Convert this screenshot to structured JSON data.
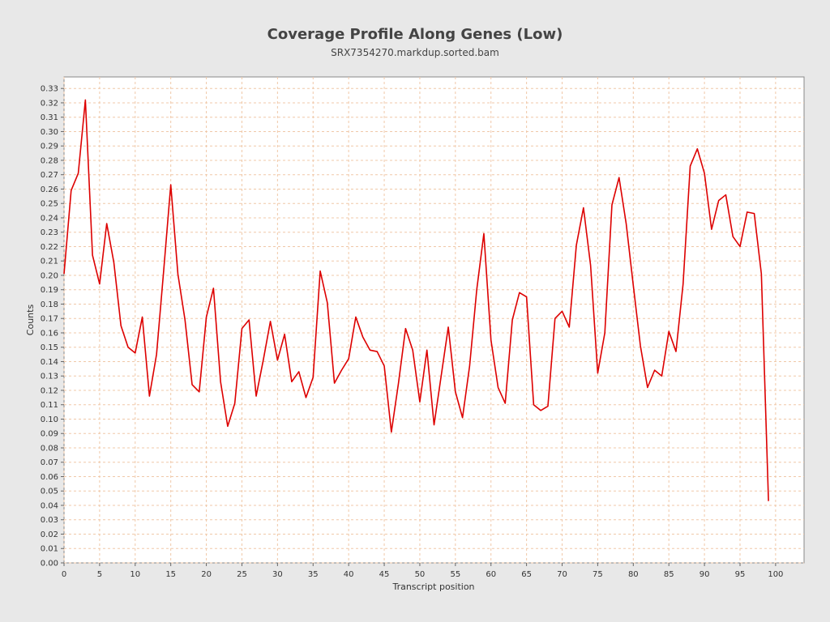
{
  "chart_data": {
    "type": "line",
    "title": "Coverage Profile Along Genes (Low)",
    "subtitle": "SRX7354270.markdup.sorted.bam",
    "xlabel": "Transcript position",
    "ylabel": "Counts",
    "xlim": [
      0,
      104
    ],
    "ylim": [
      0,
      0.338
    ],
    "xticks": [
      0,
      5,
      10,
      15,
      20,
      25,
      30,
      35,
      40,
      45,
      50,
      55,
      60,
      65,
      70,
      75,
      80,
      85,
      90,
      95,
      100
    ],
    "yticks": [
      "0.00",
      "0.01",
      "0.02",
      "0.03",
      "0.04",
      "0.05",
      "0.06",
      "0.07",
      "0.08",
      "0.09",
      "0.10",
      "0.11",
      "0.12",
      "0.13",
      "0.14",
      "0.15",
      "0.16",
      "0.17",
      "0.18",
      "0.19",
      "0.20",
      "0.21",
      "0.22",
      "0.23",
      "0.24",
      "0.25",
      "0.26",
      "0.27",
      "0.28",
      "0.29",
      "0.30",
      "0.31",
      "0.32",
      "0.33"
    ],
    "grid": true,
    "legend": "none",
    "series": [
      {
        "color": "#dd0000",
        "x": [
          0,
          1,
          2,
          3,
          4,
          5,
          6,
          7,
          8,
          9,
          10,
          11,
          12,
          13,
          14,
          15,
          16,
          17,
          18,
          19,
          20,
          21,
          22,
          23,
          24,
          25,
          26,
          27,
          28,
          29,
          30,
          31,
          32,
          33,
          34,
          35,
          36,
          37,
          38,
          39,
          40,
          41,
          42,
          43,
          44,
          45,
          46,
          47,
          48,
          49,
          50,
          51,
          52,
          53,
          54,
          55,
          56,
          57,
          58,
          59,
          60,
          61,
          62,
          63,
          64,
          65,
          66,
          67,
          68,
          69,
          70,
          71,
          72,
          73,
          74,
          75,
          76,
          77,
          78,
          79,
          80,
          81,
          82,
          83,
          84,
          85,
          86,
          87,
          88,
          89,
          90,
          91,
          92,
          93,
          94,
          95,
          96,
          97,
          98,
          99
        ],
        "y": [
          0.201,
          0.259,
          0.271,
          0.322,
          0.214,
          0.194,
          0.236,
          0.209,
          0.165,
          0.15,
          0.146,
          0.171,
          0.116,
          0.145,
          0.203,
          0.263,
          0.201,
          0.169,
          0.124,
          0.119,
          0.171,
          0.191,
          0.126,
          0.095,
          0.111,
          0.163,
          0.169,
          0.116,
          0.141,
          0.168,
          0.141,
          0.159,
          0.126,
          0.133,
          0.115,
          0.129,
          0.203,
          0.181,
          0.125,
          0.134,
          0.142,
          0.171,
          0.157,
          0.148,
          0.147,
          0.137,
          0.091,
          0.125,
          0.163,
          0.148,
          0.112,
          0.148,
          0.096,
          0.13,
          0.164,
          0.119,
          0.101,
          0.137,
          0.19,
          0.229,
          0.155,
          0.122,
          0.111,
          0.169,
          0.188,
          0.185,
          0.11,
          0.106,
          0.109,
          0.17,
          0.175,
          0.164,
          0.221,
          0.247,
          0.207,
          0.132,
          0.16,
          0.249,
          0.268,
          0.236,
          0.193,
          0.151,
          0.122,
          0.134,
          0.13,
          0.161,
          0.147,
          0.194,
          0.276,
          0.288,
          0.271,
          0.232,
          0.252,
          0.256,
          0.227,
          0.22,
          0.244,
          0.243,
          0.201,
          0.043
        ]
      }
    ]
  }
}
